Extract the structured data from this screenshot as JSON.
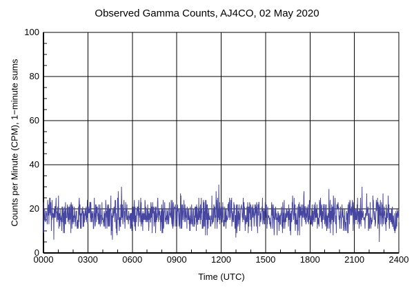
{
  "chart_data": {
    "type": "line",
    "title": "Observed Gamma Counts, AJ4CO, 02 May 2020",
    "xlabel": "Time (UTC)",
    "ylabel": "Counts per Minute (CPM), 1−minute sums",
    "background_color": "#FFFFFF",
    "axis_color": "#000000",
    "text_color": "#000000",
    "grid": "full-length black gridlines at every major tick on both axes",
    "legend_position": "none",
    "xlim_minutes": [
      0,
      1440
    ],
    "ylim": [
      0,
      100
    ],
    "x_major_ticks": [
      {
        "minutes": 0,
        "label": "0000"
      },
      {
        "minutes": 180,
        "label": "0300"
      },
      {
        "minutes": 360,
        "label": "0600"
      },
      {
        "minutes": 540,
        "label": "0900"
      },
      {
        "minutes": 720,
        "label": "1200"
      },
      {
        "minutes": 900,
        "label": "1500"
      },
      {
        "minutes": 1080,
        "label": "1800"
      },
      {
        "minutes": 1260,
        "label": "2100"
      },
      {
        "minutes": 1440,
        "label": "2400"
      }
    ],
    "x_minor_step_minutes": 60,
    "y_major_ticks": [
      0,
      20,
      40,
      60,
      80,
      100
    ],
    "y_minor_step": 5,
    "series": [
      {
        "name": "1-minute gamma count sums",
        "color": "#4646A0",
        "points": 1440,
        "approx_mean_cpm": 17.3,
        "approx_std_cpm": 4.2,
        "approx_min_cpm": 3,
        "approx_max_cpm": 31,
        "distribution": "poisson",
        "prng_seed": 20200502
      }
    ]
  }
}
